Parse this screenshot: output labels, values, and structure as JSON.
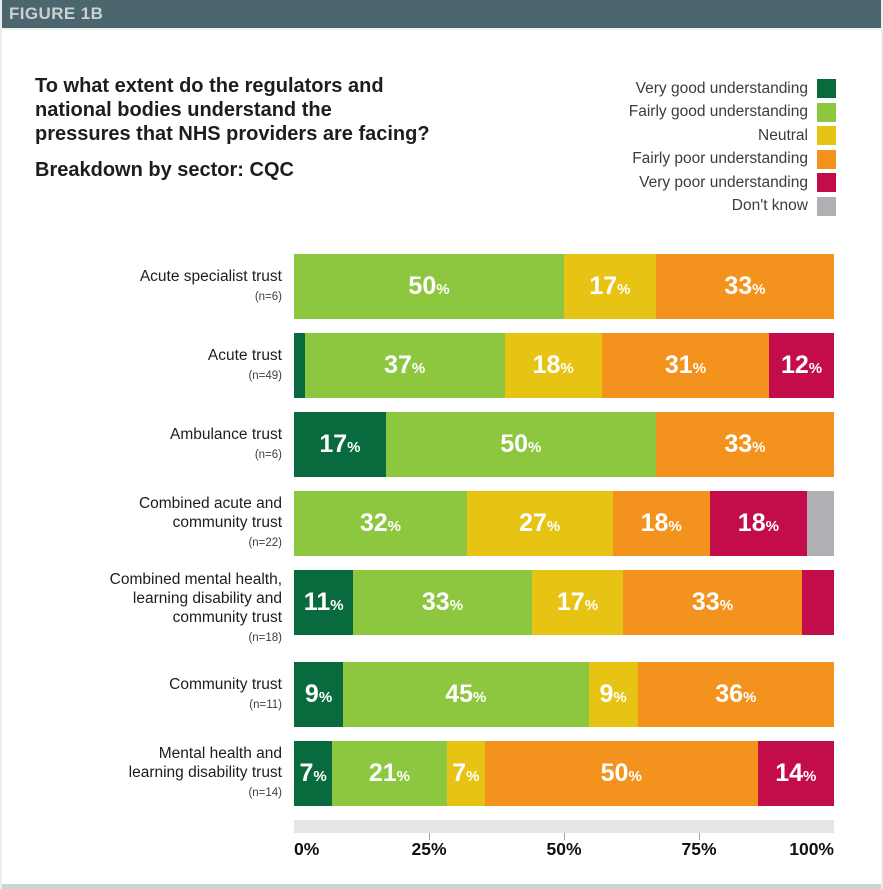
{
  "figure_label": "FIGURE 1B",
  "title": {
    "line1": "To what extent do the regulators and",
    "line2": "national bodies understand the",
    "line3": "pressures that NHS providers are facing?",
    "subtitle": "Breakdown by sector: CQC"
  },
  "colors": {
    "header_bar": "#4C666D",
    "header_text": "#C8D1D3",
    "axis_strip": "#E3E5E6",
    "bottom_strip": "#CBD5D8",
    "very_good": "#096A3D",
    "fairly_good": "#8DC63F",
    "neutral": "#E7C414",
    "fairly_poor": "#F3931E",
    "very_poor": "#C30D4B",
    "dont_know": "#AEB0B3"
  },
  "chart_data": {
    "type": "bar",
    "variant": "horizontal-stacked-percent",
    "title": "To what extent do the regulators and national bodies understand the pressures that NHS providers are facing? Breakdown by sector: CQC",
    "legend_position": "top-right",
    "categories": [
      {
        "label": "Acute specialist trust",
        "n": "(n=6)"
      },
      {
        "label": "Acute trust",
        "n": "(n=49)"
      },
      {
        "label": "Ambulance trust",
        "n": "(n=6)"
      },
      {
        "label": "Combined acute and community trust",
        "n": "(n=22)"
      },
      {
        "label": "Combined mental health, learning disability and community trust",
        "n": "(n=18)"
      },
      {
        "label": "Community trust",
        "n": "(n=11)"
      },
      {
        "label": "Mental health and learning disability trust",
        "n": "(n=14)"
      }
    ],
    "series": [
      {
        "name": "Very good understanding",
        "color": "#096A3D",
        "values": [
          0,
          2,
          17,
          0,
          11,
          9,
          7
        ],
        "value_labels": [
          "",
          "",
          "17%",
          "",
          "11%",
          "9%",
          "7%"
        ]
      },
      {
        "name": "Fairly good understanding",
        "color": "#8DC63F",
        "values": [
          50,
          37,
          50,
          32,
          33,
          45,
          21
        ],
        "value_labels": [
          "50%",
          "37%",
          "50%",
          "32%",
          "33%",
          "45%",
          "21%"
        ]
      },
      {
        "name": "Neutral",
        "color": "#E7C414",
        "values": [
          17,
          18,
          0,
          27,
          17,
          9,
          7
        ],
        "value_labels": [
          "17%",
          "18%",
          "",
          "27%",
          "17%",
          "9%",
          "7%"
        ]
      },
      {
        "name": "Fairly poor understanding",
        "color": "#F3931E",
        "values": [
          33,
          31,
          33,
          18,
          33,
          36,
          50
        ],
        "value_labels": [
          "33%",
          "31%",
          "33%",
          "18%",
          "33%",
          "36%",
          "50%"
        ]
      },
      {
        "name": "Very poor understanding",
        "color": "#C30D4B",
        "values": [
          0,
          12,
          0,
          18,
          6,
          0,
          14
        ],
        "value_labels": [
          "",
          "12%",
          "",
          "18%",
          "",
          "",
          "14%"
        ]
      },
      {
        "name": "Don't know",
        "color": "#AEB0B3",
        "values": [
          0,
          0,
          0,
          5,
          0,
          0,
          0
        ],
        "value_labels": [
          "",
          "",
          "",
          "",
          "",
          "",
          ""
        ]
      }
    ],
    "x_axis": {
      "range": [
        0,
        100
      ],
      "ticks": [
        "0%",
        "25%",
        "50%",
        "75%",
        "100%"
      ],
      "tick_positions": [
        0,
        25,
        50,
        75,
        100
      ],
      "tick_marks": [
        25,
        50,
        75
      ]
    }
  }
}
